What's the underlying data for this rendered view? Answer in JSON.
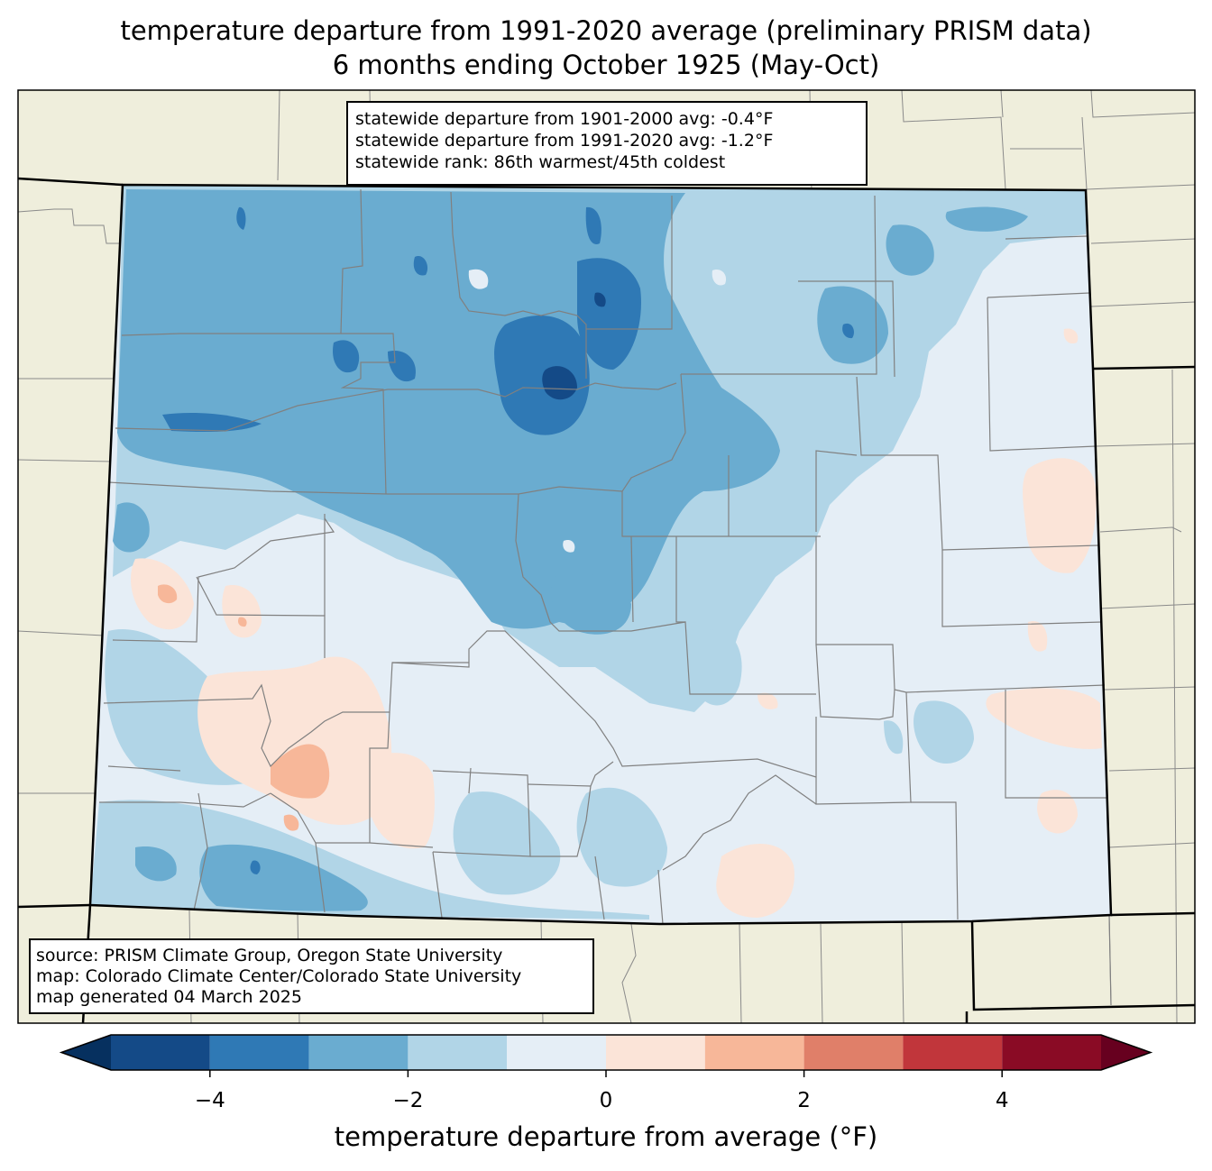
{
  "title_line1": "temperature departure from 1991-2020 average (preliminary PRISM data)",
  "title_line2": "6 months ending October 1925 (May-Oct)",
  "stats": {
    "line1": "statewide departure from 1901-2000 avg: -0.4°F",
    "line2": "statewide departure from 1991-2020 avg: -1.2°F",
    "line3": "statewide rank: 86th warmest/45th coldest"
  },
  "source": {
    "line1": "source: PRISM Climate Group, Oregon State University",
    "line2": "map: Colorado Climate Center/Colorado State University",
    "line3": "map generated 04 March 2025"
  },
  "colorbar": {
    "label": "temperature departure from average (°F)",
    "min": -5,
    "max": 5,
    "ticks": [
      "−4",
      "−2",
      "0",
      "2",
      "4"
    ],
    "tick_values": [
      -4,
      -2,
      0,
      2,
      4
    ],
    "bins": [
      {
        "from": -5,
        "to": -4,
        "color": "#144a87"
      },
      {
        "from": -4,
        "to": -3,
        "color": "#2f79b5"
      },
      {
        "from": -3,
        "to": -2,
        "color": "#6aacd0"
      },
      {
        "from": -2,
        "to": -1,
        "color": "#b1d5e7"
      },
      {
        "from": -1,
        "to": 0,
        "color": "#e5eef6"
      },
      {
        "from": 0,
        "to": 1,
        "color": "#fbe4d8"
      },
      {
        "from": 1,
        "to": 2,
        "color": "#f7b799"
      },
      {
        "from": 2,
        "to": 3,
        "color": "#e07f69"
      },
      {
        "from": 3,
        "to": 4,
        "color": "#c1363b"
      },
      {
        "from": 4,
        "to": 5,
        "color": "#8a0b25"
      }
    ],
    "under_color": "#06305f",
    "over_color": "#67001f"
  },
  "colors": {
    "land": "#efeedc",
    "state_fill": "#e5eef6"
  }
}
